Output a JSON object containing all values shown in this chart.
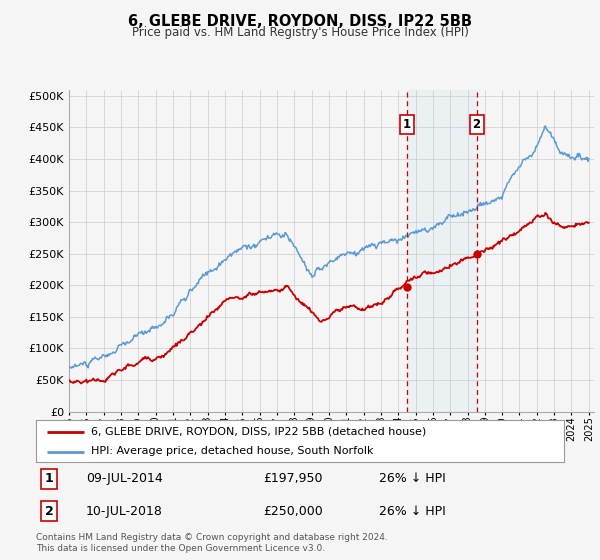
{
  "title": "6, GLEBE DRIVE, ROYDON, DISS, IP22 5BB",
  "subtitle": "Price paid vs. HM Land Registry's House Price Index (HPI)",
  "hpi_color": "#5b9bd5",
  "price_color": "#cc0000",
  "marker1_date": 2014.52,
  "marker1_price": 197950,
  "marker1_label": "09-JUL-2014",
  "marker1_amount": "£197,950",
  "marker1_note": "26% ↓ HPI",
  "marker2_date": 2018.52,
  "marker2_price": 250000,
  "marker2_label": "10-JUL-2018",
  "marker2_amount": "£250,000",
  "marker2_note": "26% ↓ HPI",
  "legend_line1": "6, GLEBE DRIVE, ROYDON, DISS, IP22 5BB (detached house)",
  "legend_line2": "HPI: Average price, detached house, South Norfolk",
  "footer": "Contains HM Land Registry data © Crown copyright and database right 2024.\nThis data is licensed under the Open Government Licence v3.0.",
  "ylim": [
    0,
    510000
  ],
  "background_color": "#f5f5f5",
  "plot_bg": "#f5f5f5",
  "grid_color": "#cccccc"
}
